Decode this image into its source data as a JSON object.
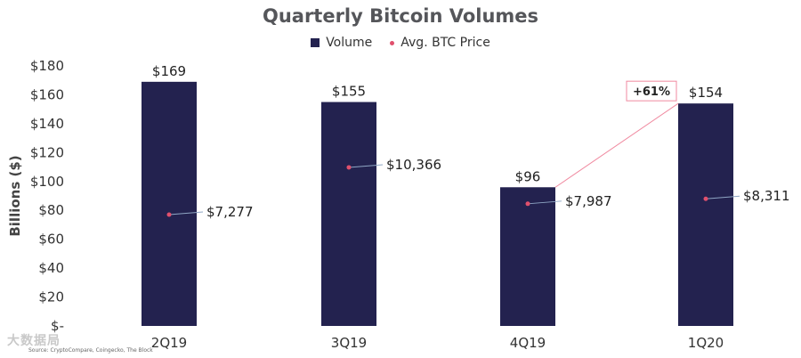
{
  "chart_data": {
    "type": "bar",
    "title": "Quarterly Bitcoin Volumes",
    "ylabel": "Billions ($)",
    "xlabel": "",
    "ylim": [
      0,
      180
    ],
    "y_ticks": [
      "$-",
      "$20",
      "$40",
      "$60",
      "$80",
      "$100",
      "$120",
      "$140",
      "$160",
      "$180"
    ],
    "categories": [
      "2Q19",
      "3Q19",
      "4Q19",
      "1Q20"
    ],
    "series": [
      {
        "name": "Volume",
        "values": [
          169,
          155,
          96,
          154
        ],
        "labels": [
          "$169",
          "$155",
          "$96",
          "$154"
        ],
        "color": "#23224f"
      },
      {
        "name": "Avg. BTC Price",
        "values": [
          7277,
          10366,
          7987,
          8311
        ],
        "labels": [
          "$7,277",
          "$10,366",
          "$7,987",
          "$8,311"
        ],
        "color": "#e0506d"
      }
    ],
    "legend_position": "top-center",
    "annotations": [
      {
        "text": "+61%",
        "from": "4Q19",
        "to": "1Q20"
      }
    ],
    "grid": false
  },
  "source": "Source: CryptoCompare, Coingecko, The Block",
  "watermark": "大数据局"
}
